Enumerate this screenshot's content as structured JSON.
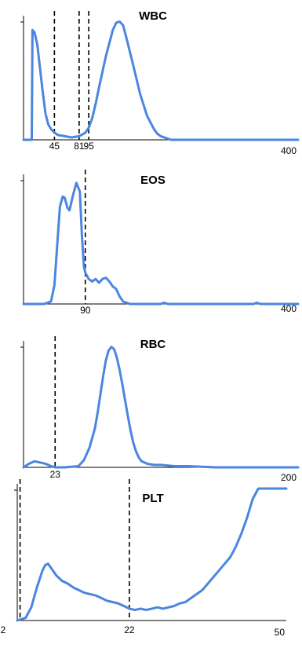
{
  "chart_data": [
    {
      "type": "line",
      "title": "WBC",
      "xlabel": "",
      "ylabel": "",
      "xlim": [
        0,
        400
      ],
      "ylim": [
        0,
        100
      ],
      "x_end_label": "400",
      "color": "#4a86e0",
      "grid": false,
      "markers": [
        {
          "x": 45,
          "label": "45"
        },
        {
          "x": 81,
          "label": "81"
        },
        {
          "x": 95,
          "label": "95"
        }
      ],
      "series": [
        {
          "x": [
            0,
            12,
            13,
            16,
            20,
            24,
            28,
            32,
            36,
            40,
            45,
            50,
            60,
            70,
            81,
            90,
            95,
            100,
            105,
            110,
            120,
            130,
            135,
            140,
            145,
            150,
            160,
            170,
            180,
            190,
            195,
            200,
            210,
            215,
            230,
            260,
            300,
            400
          ],
          "y": [
            0,
            0,
            92,
            90,
            80,
            60,
            40,
            22,
            13,
            9,
            6,
            4,
            3,
            2,
            3,
            6,
            10,
            18,
            30,
            44,
            70,
            92,
            98,
            99,
            96,
            85,
            62,
            38,
            20,
            9,
            5,
            3,
            1,
            0,
            0,
            0,
            0,
            0
          ]
        }
      ]
    },
    {
      "type": "line",
      "title": "EOS",
      "xlabel": "",
      "ylabel": "",
      "xlim": [
        0,
        400
      ],
      "ylim": [
        0,
        100
      ],
      "x_end_label": "400",
      "color": "#4a86e0",
      "grid": false,
      "markers": [
        {
          "x": 90,
          "label": "90"
        }
      ],
      "series": [
        {
          "x": [
            0,
            30,
            40,
            45,
            50,
            53,
            57,
            60,
            64,
            67,
            72,
            77,
            82,
            85,
            88,
            90,
            95,
            100,
            105,
            110,
            115,
            120,
            125,
            130,
            135,
            140,
            145,
            150,
            155,
            160,
            170,
            180,
            200,
            205,
            210,
            250,
            300,
            335,
            340,
            345,
            360,
            400
          ],
          "y": [
            0,
            0,
            2,
            15,
            55,
            78,
            86,
            85,
            77,
            75,
            87,
            97,
            90,
            55,
            30,
            25,
            20,
            18,
            20,
            17,
            20,
            21,
            18,
            14,
            12,
            6,
            2,
            1,
            0,
            0,
            0,
            0,
            0,
            1,
            0,
            0,
            0,
            0,
            1,
            0,
            0,
            0
          ]
        }
      ]
    },
    {
      "type": "line",
      "title": "RBC",
      "xlabel": "",
      "ylabel": "",
      "xlim": [
        0,
        200
      ],
      "ylim": [
        0,
        100
      ],
      "x_end_label": "200",
      "color": "#4a86e0",
      "grid": false,
      "markers": [
        {
          "x": 23,
          "label": "23"
        }
      ],
      "series": [
        {
          "x": [
            0,
            4,
            8,
            12,
            16,
            20,
            23,
            30,
            40,
            44,
            48,
            52,
            54,
            56,
            58,
            60,
            62,
            64,
            66,
            68,
            70,
            72,
            74,
            76,
            78,
            80,
            82,
            84,
            86,
            88,
            90,
            95,
            100,
            110,
            120,
            140,
            160,
            180,
            200
          ],
          "y": [
            0,
            3,
            5,
            4,
            3,
            1,
            0,
            0,
            1,
            6,
            16,
            32,
            45,
            60,
            75,
            88,
            96,
            99,
            97,
            90,
            80,
            68,
            55,
            42,
            30,
            20,
            13,
            8,
            5,
            4,
            3,
            2,
            2,
            1,
            1,
            0,
            0,
            0,
            0
          ]
        }
      ]
    },
    {
      "type": "line",
      "title": "PLT",
      "xlabel": "",
      "ylabel": "",
      "xlim": [
        2,
        50
      ],
      "ylim": [
        0,
        100
      ],
      "x_start_label": "2",
      "x_end_label": "50",
      "color": "#4a86e0",
      "grid": false,
      "markers": [
        {
          "x": 2.5,
          "label": ""
        },
        {
          "x": 22,
          "label": "22"
        }
      ],
      "series": [
        {
          "x": [
            2,
            3.5,
            4.5,
            5.5,
            6.5,
            7.0,
            7.5,
            8.0,
            9.0,
            10.0,
            11.0,
            12.0,
            13.0,
            14.0,
            15.0,
            16.0,
            17.0,
            18.0,
            19.0,
            20.0,
            21.0,
            22.0,
            23.0,
            24.0,
            25.0,
            26.0,
            27.0,
            28.0,
            29.0,
            30.0,
            31.0,
            32.0,
            33.0,
            34.0,
            35.0,
            36.0,
            37.0,
            38.0,
            39.0,
            40.0,
            41.0,
            42.0,
            43.0,
            44.0,
            45.0,
            48.0,
            50.0
          ],
          "y": [
            0,
            2,
            10,
            25,
            38,
            42,
            43,
            40,
            34,
            30,
            28,
            25,
            23,
            21,
            20,
            19,
            17,
            15,
            14,
            13,
            11,
            9,
            8,
            9,
            8,
            9,
            10,
            9,
            10,
            11,
            13,
            14,
            17,
            20,
            23,
            28,
            33,
            38,
            43,
            48,
            56,
            66,
            78,
            92,
            100,
            100,
            100
          ]
        }
      ]
    }
  ]
}
